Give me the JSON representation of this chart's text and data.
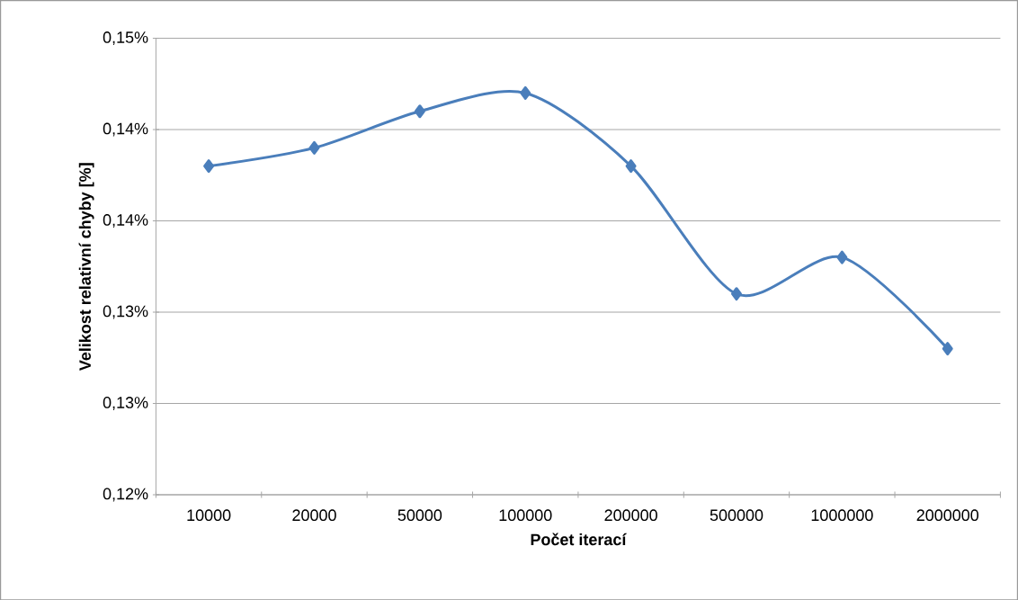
{
  "chart_data": {
    "type": "line",
    "xlabel": "Počet iterací",
    "ylabel": "Velikost relativní chyby [%]",
    "categories": [
      "10000",
      "20000",
      "50000",
      "100000",
      "200000",
      "500000",
      "1000000",
      "2000000"
    ],
    "series": [
      {
        "color": "#4a7ebb",
        "values": [
          0.138,
          0.139,
          0.141,
          0.142,
          0.138,
          0.131,
          0.133,
          0.128
        ]
      }
    ],
    "ylim": [
      0.12,
      0.145
    ],
    "yticks": [
      {
        "value": 0.12,
        "label": "0,12%"
      },
      {
        "value": 0.125,
        "label": "0,13%"
      },
      {
        "value": 0.13,
        "label": "0,13%"
      },
      {
        "value": 0.135,
        "label": "0,14%"
      },
      {
        "value": 0.14,
        "label": "0,14%"
      },
      {
        "value": 0.145,
        "label": "0,15%"
      }
    ],
    "grid": "y",
    "marker": "diamond",
    "line_style": "solid"
  }
}
